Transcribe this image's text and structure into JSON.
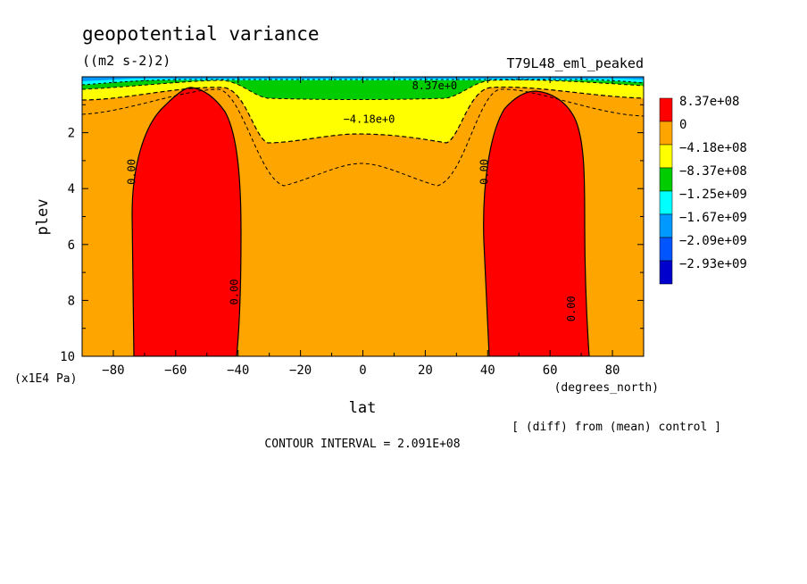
{
  "chart_data": {
    "type": "heatmap",
    "title": "geopotential variance",
    "units": "((m2 s-2)2)",
    "experiment": "T79L48_eml_peaked",
    "xlabel": "lat",
    "x_units": "(degrees_north)",
    "ylabel": "plev",
    "y_units": "(x1E4 Pa)",
    "xlim": [
      -90,
      90
    ],
    "ylim": [
      0,
      10
    ],
    "y_reversed": true,
    "x_ticks": [
      -80,
      -60,
      -40,
      -20,
      0,
      20,
      40,
      60,
      80
    ],
    "y_ticks": [
      2,
      4,
      6,
      8,
      10
    ],
    "contour_interval_text": "CONTOUR INTERVAL = 2.091E+08",
    "difference_note": "[ (diff) from (mean) control ]",
    "contour_labels": [
      {
        "text": "8.37e+0",
        "lat": 23,
        "plev": 0.45
      },
      {
        "text": "-4.18e+0",
        "lat": 2,
        "plev": 1.65
      },
      {
        "text": "0.00",
        "lat": -73,
        "plev": 3.4
      },
      {
        "text": "0.00",
        "lat": -40,
        "plev": 7.7
      },
      {
        "text": "0.00",
        "lat": 40,
        "plev": 3.4
      },
      {
        "text": "0.00",
        "lat": 68,
        "plev": 8.3
      }
    ],
    "legend": {
      "levels": [
        "8.37e+08",
        "0",
        "-4.18e+08",
        "-8.37e+08",
        "-1.25e+09",
        "-1.67e+09",
        "-2.09e+09",
        "-2.93e+09"
      ],
      "colors": [
        "#ff0000",
        "#ffa500",
        "#ffff00",
        "#00cc00",
        "#00ffff",
        "#0099ff",
        "#0055ff",
        "#0000cc"
      ]
    },
    "regions": {
      "positive_cells_red": [
        {
          "lat_range": [
            -73,
            -38
          ],
          "plev_range": [
            0.4,
            10
          ],
          "peak_lat": -55
        },
        {
          "lat_range": [
            40,
            68
          ],
          "plev_range": [
            0.7,
            10
          ],
          "peak_lat": 55
        }
      ],
      "negative_upper_band": {
        "plev_range": [
          0,
          2.6
        ],
        "min_lat_center": 0
      }
    }
  }
}
